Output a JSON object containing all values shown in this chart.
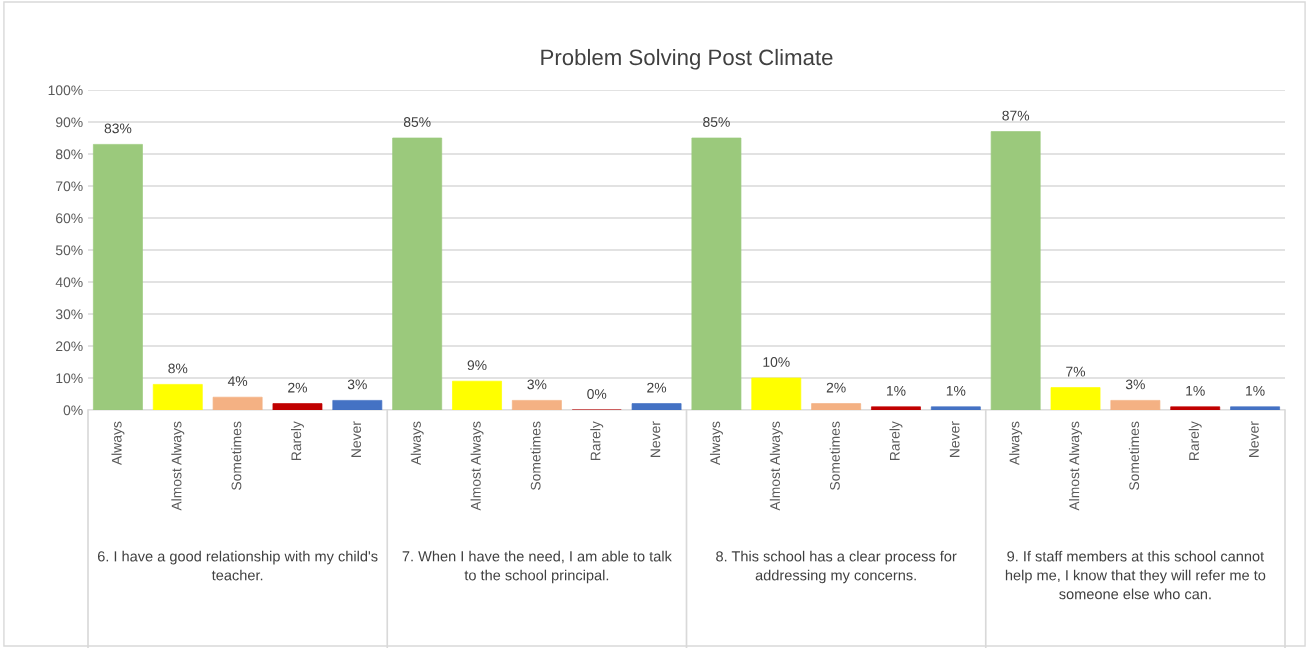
{
  "chart_data": {
    "type": "bar",
    "title": "Problem Solving Post Climate",
    "categories": [
      "Always",
      "Almost Always",
      "Sometimes",
      "Rarely",
      "Never",
      "Always",
      "Almost Always",
      "Sometimes",
      "Rarely",
      "Never",
      "Always",
      "Almost Always",
      "Sometimes",
      "Rarely",
      "Never",
      "Always",
      "Almost Always",
      "Sometimes",
      "Rarely",
      "Never"
    ],
    "values": [
      83,
      8,
      4,
      2,
      3,
      85,
      9,
      3,
      0,
      2,
      85,
      10,
      2,
      1,
      1,
      87,
      7,
      3,
      1,
      1
    ],
    "colors": [
      "#9bc97c",
      "#ffff00",
      "#f4b183",
      "#c00000",
      "#4472c4",
      "#9bc97c",
      "#ffff00",
      "#f4b183",
      "#c00000",
      "#4472c4",
      "#9bc97c",
      "#ffff00",
      "#f4b183",
      "#c00000",
      "#4472c4",
      "#9bc97c",
      "#ffff00",
      "#f4b183",
      "#c00000",
      "#4472c4"
    ],
    "value_labels": [
      "83%",
      "8%",
      "4%",
      "2%",
      "3%",
      "85%",
      "9%",
      "3%",
      "0%",
      "2%",
      "85%",
      "10%",
      "2%",
      "1%",
      "1%",
      "87%",
      "7%",
      "3%",
      "1%",
      "1%"
    ],
    "ylim": [
      0,
      100
    ],
    "yticks": [
      {
        "value": 0,
        "label": "0%"
      },
      {
        "value": 10,
        "label": "10%"
      },
      {
        "value": 20,
        "label": "20%"
      },
      {
        "value": 30,
        "label": "30%"
      },
      {
        "value": 40,
        "label": "40%"
      },
      {
        "value": 50,
        "label": "50%"
      },
      {
        "value": 60,
        "label": "60%"
      },
      {
        "value": 70,
        "label": "70%"
      },
      {
        "value": 80,
        "label": "80%"
      },
      {
        "value": 90,
        "label": "90%"
      },
      {
        "value": 100,
        "label": "100%"
      }
    ],
    "grid": "y",
    "legend": false,
    "annotations": [
      "6. I have a good relationship with my child's teacher.",
      "7. When I have the need, I am able to talk to the school principal.",
      "8. This school has a clear process for addressing my concerns.",
      "9. If staff members at this school cannot help me, I know that they will refer me to someone else who can."
    ]
  }
}
